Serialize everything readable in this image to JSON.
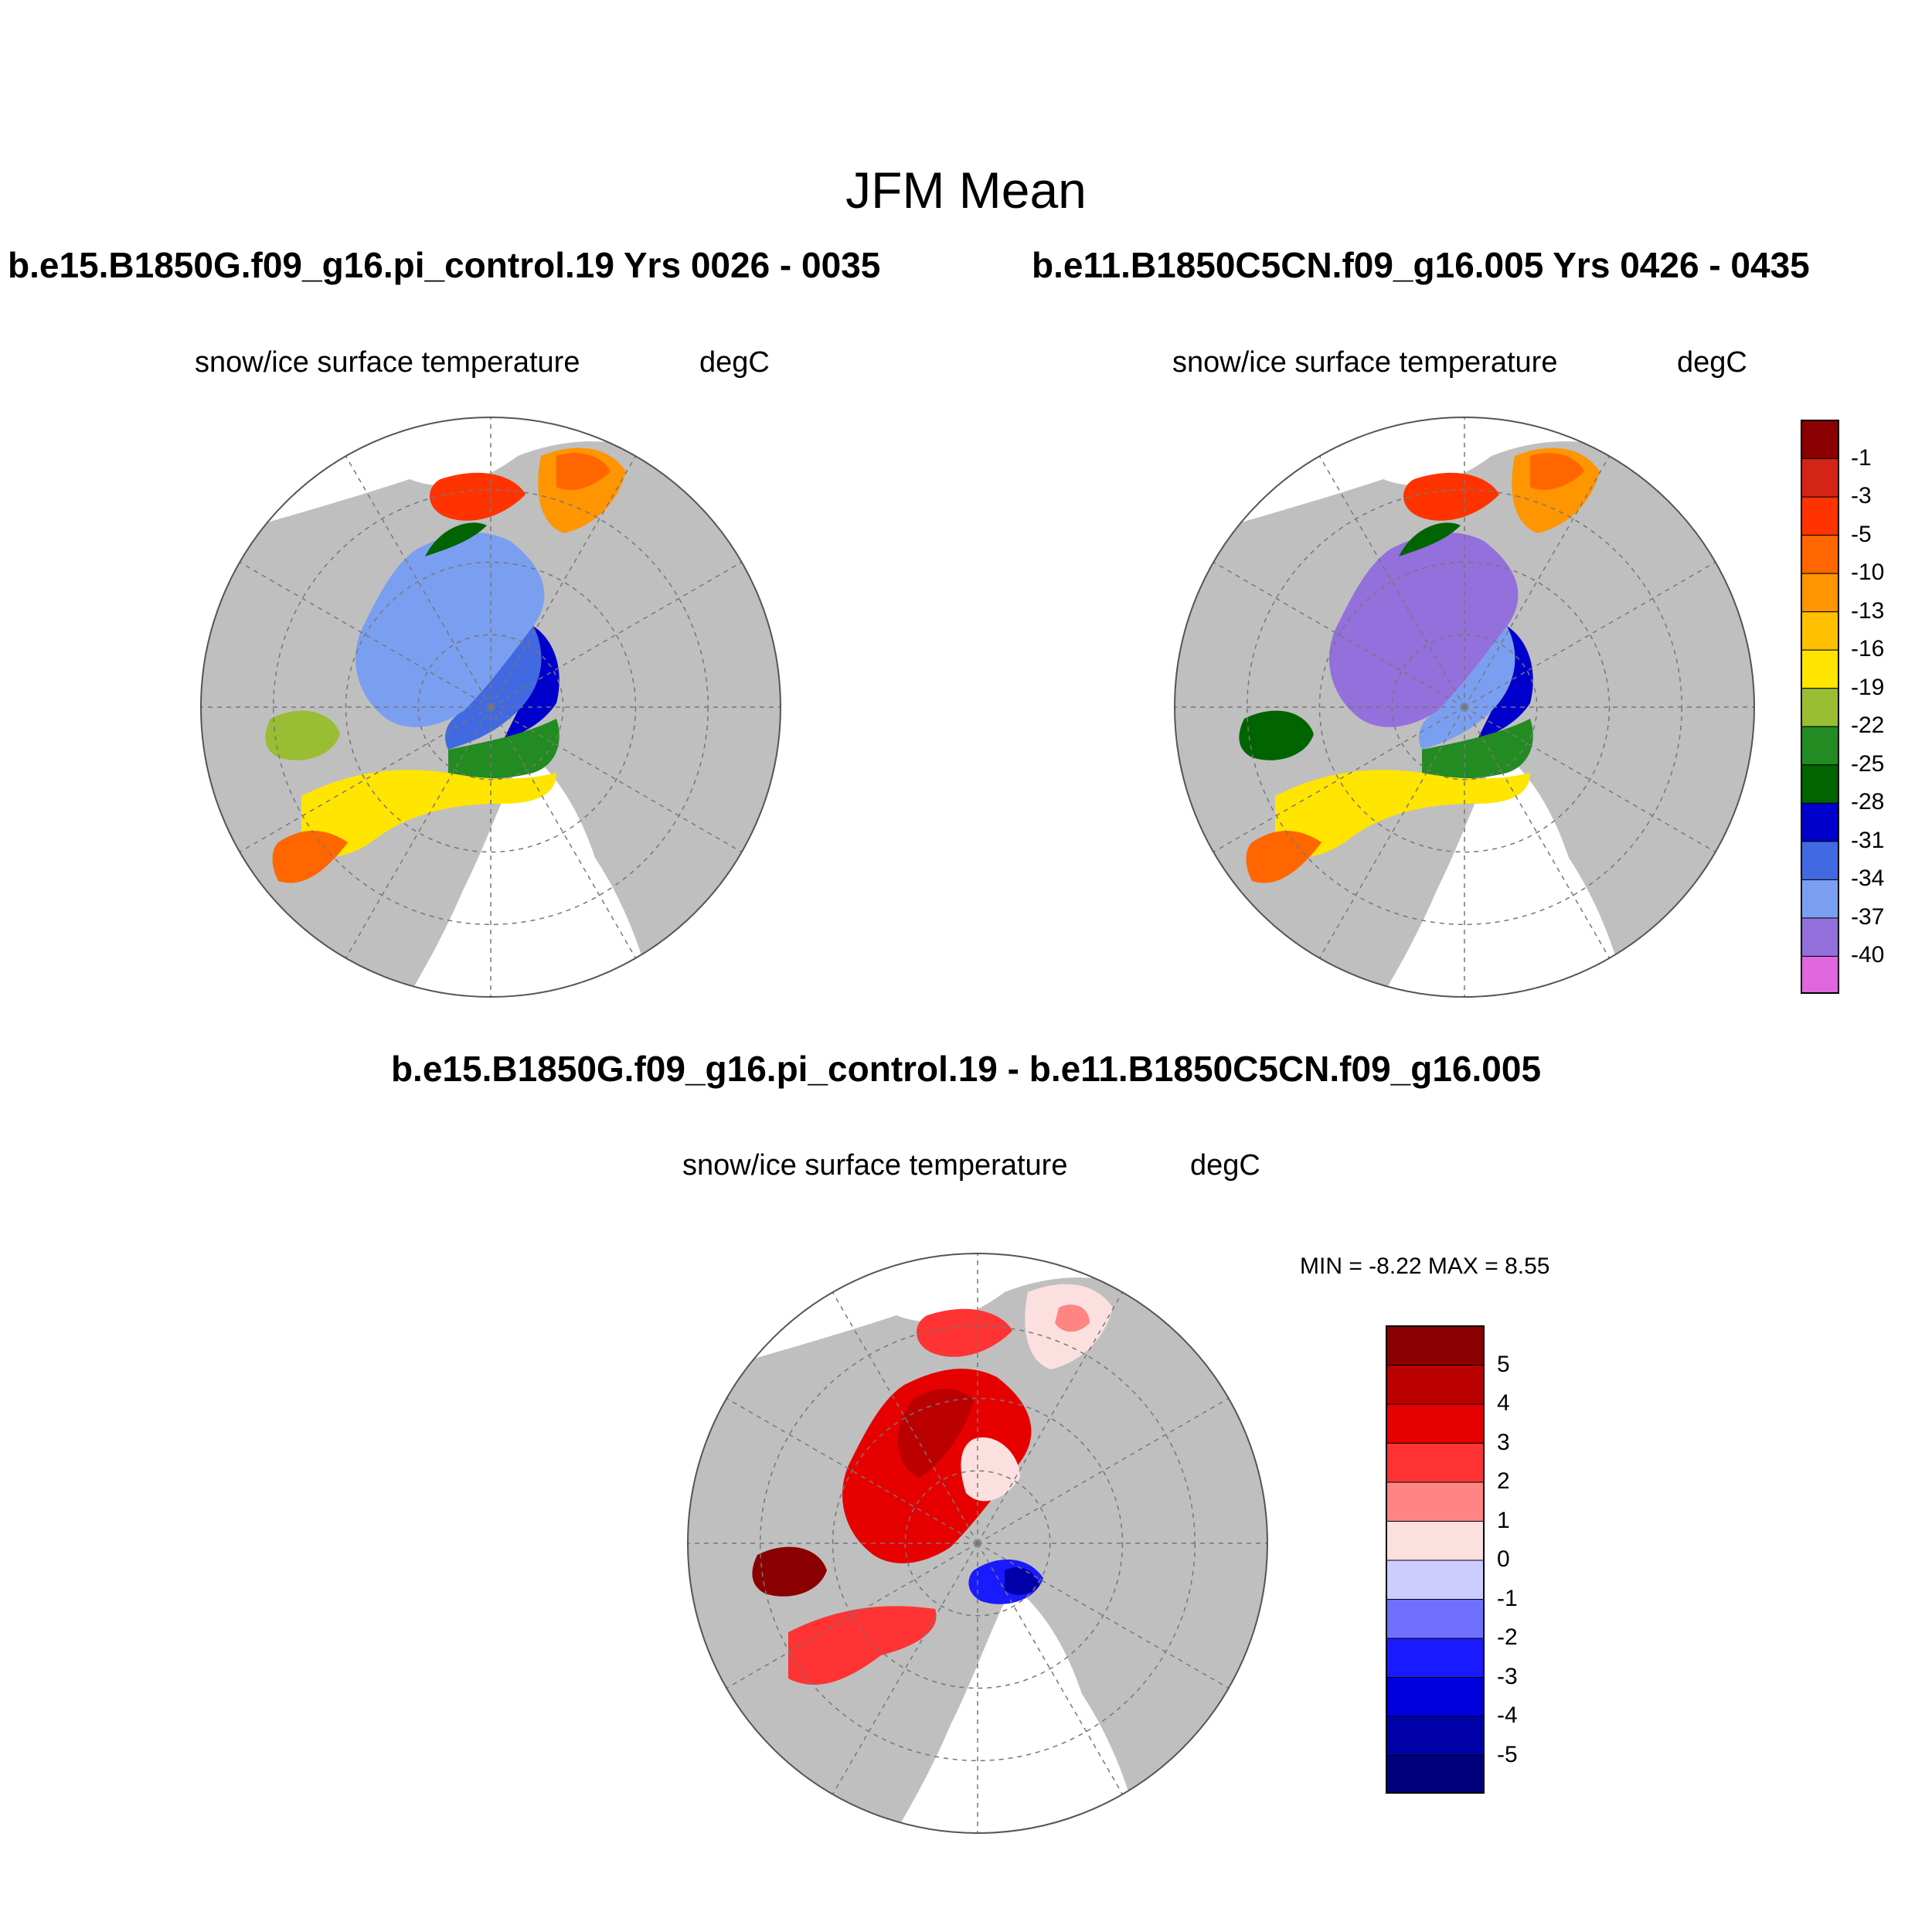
{
  "figure": {
    "title": "JFM Mean",
    "land_color": "#bfbfbf",
    "ocean_color": "#ffffff"
  },
  "panels": [
    {
      "id": "case1",
      "title": "b.e15.B1850G.f09_g16.pi_control.19  Yrs 0026 - 0035",
      "variable": "snow/ice surface temperature",
      "units": "degC",
      "projection": "north-polar-stereographic"
    },
    {
      "id": "case2",
      "title": "b.e11.B1850C5CN.f09_g16.005  Yrs 0426 - 0435",
      "variable": "snow/ice surface temperature",
      "units": "degC",
      "projection": "north-polar-stereographic"
    },
    {
      "id": "diff",
      "title": "b.e15.B1850G.f09_g16.pi_control.19 - b.e11.B1850C5CN.f09_g16.005",
      "variable": "snow/ice surface temperature",
      "units": "degC",
      "projection": "north-polar-stereographic",
      "stats": {
        "label": "MIN =  -8.22 MAX =   8.55",
        "min": -8.22,
        "max": 8.55
      }
    }
  ],
  "colorbars": {
    "temperature": {
      "labels": [
        "-1",
        "-3",
        "-5",
        "-10",
        "-13",
        "-16",
        "-19",
        "-22",
        "-25",
        "-28",
        "-31",
        "-34",
        "-37",
        "-40"
      ],
      "colors": [
        "#8b0000",
        "#d42415",
        "#ff3300",
        "#ff6600",
        "#ff9500",
        "#ffc000",
        "#ffe500",
        "#99bd33",
        "#228b22",
        "#006400",
        "#0000cd",
        "#4169e1",
        "#7b9ff0",
        "#9370db",
        "#e066e0"
      ]
    },
    "difference": {
      "labels": [
        "5",
        "4",
        "3",
        "2",
        "1",
        "0",
        "-1",
        "-2",
        "-3",
        "-4",
        "-5"
      ],
      "colors": [
        "#8b0000",
        "#bb0000",
        "#e60000",
        "#ff3333",
        "#ff8585",
        "#fce0e0",
        "#ccccff",
        "#7070ff",
        "#1a1aff",
        "#0000dd",
        "#0000a8",
        "#00007a"
      ]
    }
  }
}
